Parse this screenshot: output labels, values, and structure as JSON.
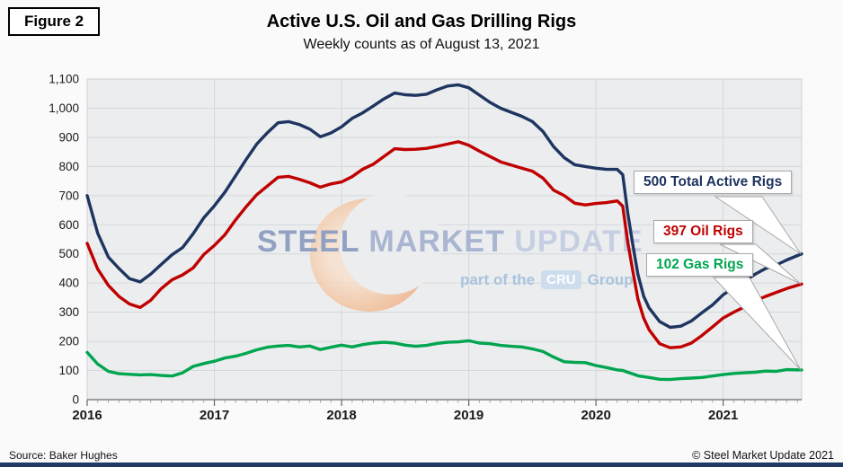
{
  "figure_label": "Figure 2",
  "header": {
    "title": "Active U.S. Oil and Gas Drilling Rigs",
    "subtitle": "Weekly counts as of August 13, 2021"
  },
  "footer": {
    "source": "Source: Baker Hughes",
    "copyright": "© Steel Market Update 2021"
  },
  "watermark": {
    "word1": "STEEL",
    "word2": "MARKET",
    "word3": "UPDATE",
    "tagline_prefix": "part of the",
    "tagline_box": "CRU",
    "tagline_suffix": "Group"
  },
  "colors": {
    "total": "#1e3560",
    "oil": "#c00000",
    "gas": "#00a550",
    "plot_bg": "#ebedef",
    "gridline": "#d5d8da",
    "plot_border": "#cdd0d3",
    "axis": "#666666",
    "minor_tick": "#9a9a9a",
    "tick_label": "#1a1a1a",
    "callout_border": "#a9a9a9",
    "footer_bar": "#1f3864"
  },
  "chart_data": {
    "type": "line",
    "title": "Active U.S. Oil and Gas Drilling Rigs",
    "subtitle": "Weekly counts as of August 13, 2021",
    "xlabel": "",
    "ylabel": "",
    "xlim": [
      2016,
      2021.617
    ],
    "ylim": [
      0,
      1100
    ],
    "ytick_step": 100,
    "x_ticks": [
      2016,
      2017,
      2018,
      2019,
      2020,
      2021
    ],
    "x_minor_tick_months": 1,
    "grid": true,
    "legend": "callouts",
    "x": [
      2016.0,
      2016.083,
      2016.167,
      2016.25,
      2016.333,
      2016.417,
      2016.5,
      2016.583,
      2016.667,
      2016.75,
      2016.833,
      2016.917,
      2017.0,
      2017.083,
      2017.167,
      2017.25,
      2017.333,
      2017.417,
      2017.5,
      2017.583,
      2017.667,
      2017.75,
      2017.833,
      2017.917,
      2018.0,
      2018.083,
      2018.167,
      2018.25,
      2018.333,
      2018.417,
      2018.5,
      2018.583,
      2018.667,
      2018.75,
      2018.833,
      2018.917,
      2019.0,
      2019.083,
      2019.167,
      2019.25,
      2019.333,
      2019.417,
      2019.5,
      2019.583,
      2019.667,
      2019.75,
      2019.833,
      2019.917,
      2020.0,
      2020.083,
      2020.167,
      2020.21,
      2020.25,
      2020.29,
      2020.33,
      2020.375,
      2020.417,
      2020.5,
      2020.583,
      2020.667,
      2020.75,
      2020.833,
      2020.917,
      2021.0,
      2021.083,
      2021.167,
      2021.25,
      2021.333,
      2021.417,
      2021.5,
      2021.617
    ],
    "series": [
      {
        "name": "Total Active Rigs",
        "color_key": "total",
        "final_value": 500,
        "values": [
          700,
          571,
          489,
          450,
          415,
          404,
          431,
          464,
          497,
          522,
          569,
          624,
          665,
          712,
          768,
          824,
          877,
          916,
          950,
          954,
          944,
          928,
          902,
          915,
          936,
          965,
          984,
          1008,
          1032,
          1052,
          1046,
          1044,
          1048,
          1063,
          1076,
          1080,
          1070,
          1045,
          1020,
          1000,
          986,
          972,
          954,
          920,
          868,
          830,
          806,
          800,
          794,
          790,
          790,
          772,
          640,
          530,
          430,
          355,
          315,
          268,
          248,
          252,
          270,
          298,
          325,
          360,
          384,
          407,
          430,
          450,
          462,
          479,
          500
        ]
      },
      {
        "name": "Oil Rigs",
        "color_key": "oil",
        "final_value": 397,
        "values": [
          536,
          448,
          392,
          354,
          328,
          316,
          341,
          381,
          411,
          428,
          452,
          498,
          529,
          566,
          617,
          662,
          703,
          733,
          763,
          766,
          756,
          744,
          729,
          740,
          747,
          765,
          791,
          808,
          834,
          861,
          858,
          859,
          862,
          869,
          877,
          885,
          873,
          853,
          834,
          816,
          805,
          794,
          784,
          760,
          719,
          700,
          674,
          668,
          673,
          676,
          682,
          664,
          540,
          440,
          345,
          280,
          240,
          192,
          178,
          181,
          194,
          220,
          250,
          280,
          300,
          318,
          339,
          354,
          368,
          381,
          397
        ]
      },
      {
        "name": "Gas Rigs",
        "color_key": "gas",
        "final_value": 102,
        "values": [
          162,
          122,
          97,
          89,
          87,
          85,
          86,
          83,
          81,
          92,
          114,
          124,
          132,
          143,
          149,
          159,
          171,
          180,
          184,
          186,
          181,
          184,
          172,
          180,
          187,
          181,
          189,
          194,
          197,
          194,
          187,
          183,
          186,
          193,
          197,
          198,
          202,
          194,
          192,
          186,
          183,
          181,
          174,
          165,
          146,
          130,
          128,
          127,
          117,
          110,
          102,
          100,
          94,
          88,
          82,
          79,
          76,
          70,
          69,
          72,
          74,
          76,
          81,
          86,
          90,
          92,
          94,
          98,
          97,
          103,
          102
        ]
      }
    ],
    "annotations": [
      {
        "text": "500 Total Active Rigs",
        "series": "Total Active Rigs",
        "value": 500
      },
      {
        "text": "397 Oil Rigs",
        "series": "Oil Rigs",
        "value": 397
      },
      {
        "text": "102 Gas Rigs",
        "series": "Gas Rigs",
        "value": 102
      }
    ]
  }
}
